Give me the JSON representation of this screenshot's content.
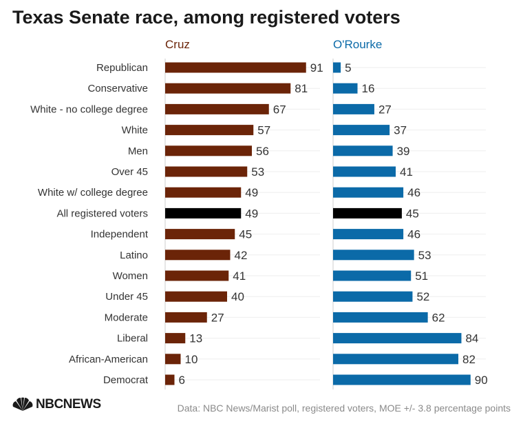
{
  "title": "Texas Senate race, among registered voters",
  "source": "Data: NBC News/Marist poll, registered voters, MOE +/- 3.8 percentage points",
  "logo": {
    "text": "NBCNEWS",
    "icon": "peacock-icon"
  },
  "colors": {
    "cruz": "#6b2408",
    "orourke": "#0b6aa8",
    "highlight": "#000000",
    "label": "#333333",
    "axis": "#cccccc",
    "grid": "#eeeeee"
  },
  "chart_data": {
    "type": "bar",
    "orientation": "horizontal",
    "title": "Texas Senate race, among registered voters",
    "categories": [
      "Republican",
      "Conservative",
      "White - no college degree",
      "White",
      "Men",
      "Over 45",
      "White w/ college degree",
      "All registered voters",
      "Independent",
      "Latino",
      "Women",
      "Under 45",
      "Moderate",
      "Liberal",
      "African-American",
      "Democrat"
    ],
    "highlight_category": "All registered voters",
    "xlim": [
      0,
      100
    ],
    "grid": true,
    "series": [
      {
        "name": "Cruz",
        "color": "#6b2408",
        "values": [
          91,
          81,
          67,
          57,
          56,
          53,
          49,
          49,
          45,
          42,
          41,
          40,
          27,
          13,
          10,
          6
        ]
      },
      {
        "name": "O'Rourke",
        "color": "#0b6aa8",
        "values": [
          5,
          16,
          27,
          37,
          39,
          41,
          46,
          45,
          46,
          53,
          51,
          52,
          62,
          84,
          82,
          90
        ]
      }
    ]
  }
}
